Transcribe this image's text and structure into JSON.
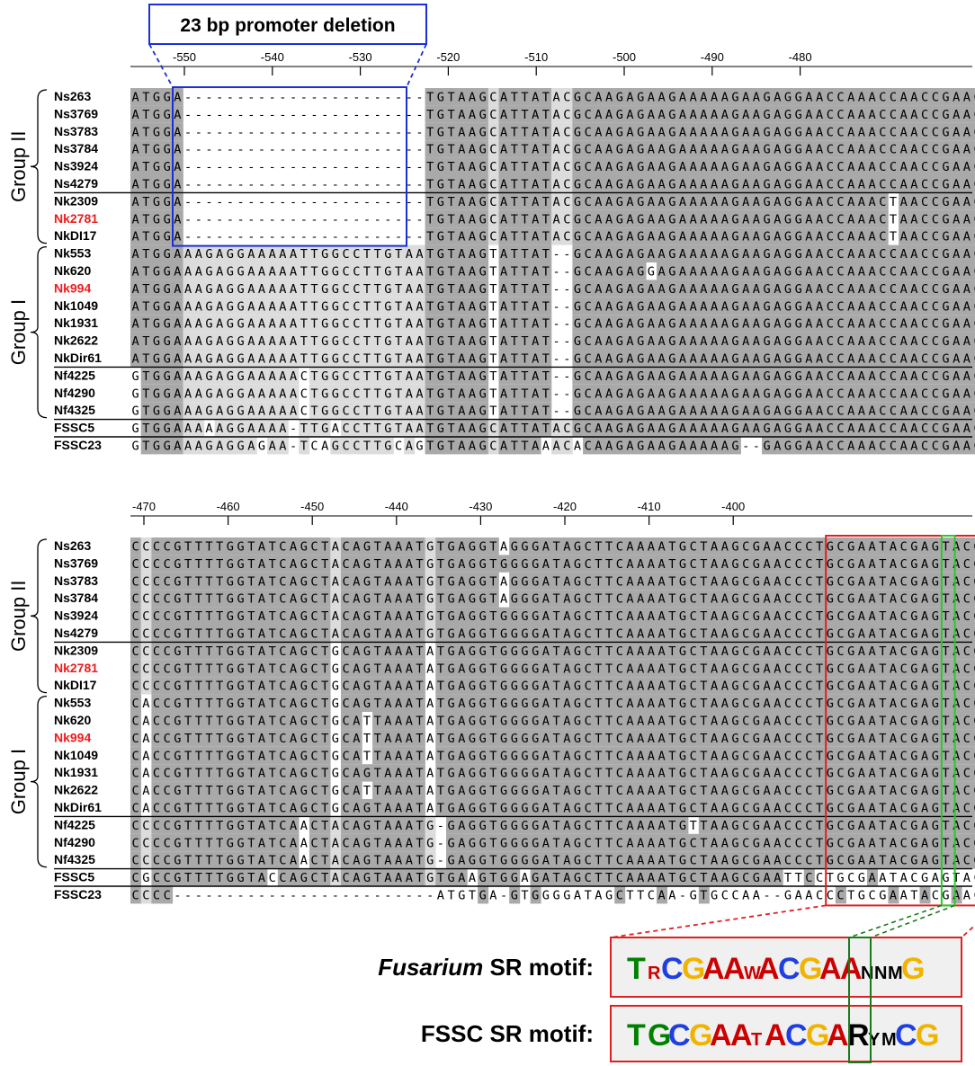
{
  "deletion_label": "23 bp promoter deletion",
  "axis_top": [
    "-550",
    "-540",
    "-530",
    "-520",
    "-510",
    "-500",
    "-490",
    "-480"
  ],
  "axis_bottom": [
    "-470",
    "-460",
    "-450",
    "-440",
    "-430",
    "-420",
    "-410",
    "-400"
  ],
  "groups": {
    "group_ii": "Group II",
    "group_i": "Group I"
  },
  "panel1": {
    "rows": [
      {
        "label": "Ns263",
        "highlight": false,
        "seq": "ATGGA-----------------------TGTAAGCATTATACGCAAGAGAAGAAAAAGAAGAGGAACCAAACCAACCGAACGT"
      },
      {
        "label": "Ns3769",
        "highlight": false,
        "seq": "ATGGA-----------------------TGTAAGCATTATACGCAAGAGAAGAAAAAGAAGAGGAACCAAACCAACCGAACGT"
      },
      {
        "label": "Ns3783",
        "highlight": false,
        "seq": "ATGGA-----------------------TGTAAGCATTATACGCAAGAGAAGAAAAAGAAGAGGAACCAAACCAACCGAACGT"
      },
      {
        "label": "Ns3784",
        "highlight": false,
        "seq": "ATGGA-----------------------TGTAAGCATTATACGCAAGAGAAGAAAAAGAAGAGGAACCAAACCAACCGAACGT"
      },
      {
        "label": "Ns3924",
        "highlight": false,
        "seq": "ATGGA-----------------------TGTAAGCATTATACGCAAGAGAAGAAAAAGAAGAGGAACCAAACCAACCGAACGT"
      },
      {
        "label": "Ns4279",
        "highlight": false,
        "seq": "ATGGA-----------------------TGTAAGCATTATACGCAAGAGAAGAAAAAGAAGAGGAACCAAACCAACCGAACGT"
      },
      {
        "label": "Nk2309",
        "highlight": false,
        "seq": "ATGGA-----------------------TGTAAGCATTATACGCAAGAGAAGAAAAAGAAGAGGAACCAAACTAACCGAACGT"
      },
      {
        "label": "Nk2781",
        "highlight": true,
        "seq": "ATGGA-----------------------TGTAAGCATTATACGCAAGAGAAGAAAAAGAAGAGGAACCAAACTAACCGAACGT"
      },
      {
        "label": "NkDI17",
        "highlight": false,
        "seq": "ATGGA-----------------------TGTAAGCATTATACGCAAGAGAAGAAAAAGAAGAGGAACCAAACTAACCGAACGT"
      },
      {
        "label": "Nk553",
        "highlight": false,
        "seq": "ATGGAAAGAGGAAAAATTGGCCTTGTAATGTAAGTATTAT--GCAAGAGAAGAAAAAGAAGAGGAACCAAACCAACCGAACGT"
      },
      {
        "label": "Nk620",
        "highlight": false,
        "seq": "ATGGAAAGAGGAAAAATTGGCCTTGTAATGTAAGTATTAT--GCAAGAGGAGAAAAAGAAGAGGAACCAAACCAACCGAACGT"
      },
      {
        "label": "Nk994",
        "highlight": true,
        "seq": "ATGGAAAGAGGAAAAATTGGCCTTGTAATGTAAGTATTAT--GCAAGAGAAGAAAAAGAAGAGGAACCAAACCAACCGAACGT"
      },
      {
        "label": "Nk1049",
        "highlight": false,
        "seq": "ATGGAAAGAGGAAAAATTGGCCTTGTAATGTAAGTATTAT--GCAAGAGAAGAAAAAGAAGAGGAACCAAACCAACCGAACGT"
      },
      {
        "label": "Nk1931",
        "highlight": false,
        "seq": "ATGGAAAGAGGAAAAATTGGCCTTGTAATGTAAGTATTAT--GCAAGAGAAGAAAAAGAAGAGGAACCAAACCAACCGAACGT"
      },
      {
        "label": "Nk2622",
        "highlight": false,
        "seq": "ATGGAAAGAGGAAAAATTGGCCTTGTAATGTAAGTATTAT--GCAAGAGAAGAAAAAGAAGAGGAACCAAACCAACCGAACGT"
      },
      {
        "label": "NkDir61",
        "highlight": false,
        "seq": "ATGGAAAGAGGAAAAATTGGCCTTGTAATGTAAGTATTAT--GCAAGAGAAGAAAAAGAAGAGGAACCAAACCAACCGAACGT"
      },
      {
        "label": "Nf4225",
        "highlight": false,
        "seq": "GTGGAAAGAGGAAAAACTGGCCTTGTAATGTAAGTATTAT--GCAAGAGAAGAAAAAGAAGAGGAACCAAACCAACCGAACGT"
      },
      {
        "label": "Nf4290",
        "highlight": false,
        "seq": "GTGGAAAGAGGAAAAACTGGCCTTGTAATGTAAGTATTAT--GCAAGAGAAGAAAAAGAAGAGGAACCAAACCAACCGAACGT"
      },
      {
        "label": "Nf4325",
        "highlight": false,
        "seq": "GTGGAAAGAGGAAAAACTGGCCTTGTAATGTAAGTATTAT--GCAAGAGAAGAAAAAGAAGAGGAACCAAACCAACCGAACGT"
      },
      {
        "label": "FSSC5",
        "highlight": false,
        "seq": "GTGGAAAAAGGAAAA-TTGACCTTGTAATGTAAGCATTATACGCAAGAGAAGAAAAAGAAGAGGAACCAAACCAACCGAACGT"
      },
      {
        "label": "FSSC23",
        "highlight": false,
        "seq": "GTGGAAAGAGGAGAA-TCAGCCTTGCAGTGTAAGCATTAAACACAAGAGAAGAAAAAG--GAGGAACCAAACCAACCGAACGT"
      }
    ]
  },
  "panel2": {
    "rows": [
      {
        "label": "Ns263",
        "highlight": false,
        "seq": "CCCCGTTTTGGTATCAGCTACAGTAAATGTGAGGTAGGGATAGCTTCAAAATGCTAAGCGAACCCTGCGAATACGAGTACGA"
      },
      {
        "label": "Ns3769",
        "highlight": false,
        "seq": "CCCCGTTTTGGTATCAGCTACAGTAAATGTGAGGTGGGGATAGCTTCAAAATGCTAAGCGAACCCTGCGAATACGAGTACGA"
      },
      {
        "label": "Ns3783",
        "highlight": false,
        "seq": "CCCCGTTTTGGTATCAGCTACAGTAAATGTGAGGTAGGGATAGCTTCAAAATGCTAAGCGAACCCTGCGAATACGAGTACGA"
      },
      {
        "label": "Ns3784",
        "highlight": false,
        "seq": "CCCCGTTTTGGTATCAGCTACAGTAAATGTGAGGTAGGGATAGCTTCAAAATGCTAAGCGAACCCTGCGAATACGAGTACGA"
      },
      {
        "label": "Ns3924",
        "highlight": false,
        "seq": "CCCCGTTTTGGTATCAGCTACAGTAAATGTGAGGTGGGGATAGCTTCAAAATGCTAAGCGAACCCTGCGAATACGAGTACGA"
      },
      {
        "label": "Ns4279",
        "highlight": false,
        "seq": "CCCCGTTTTGGTATCAGCTACAGTAAATGTGAGGTGGGGATAGCTTCAAAATGCTAAGCGAACCCTGCGAATACGAGTACGA"
      },
      {
        "label": "Nk2309",
        "highlight": false,
        "seq": "CCCCGTTTTGGTATCAGCTGCAGTAAATATGAGGTGGGGATAGCTTCAAAATGCTAAGCGAACCCTGCGAATACGAGTACGA"
      },
      {
        "label": "Nk2781",
        "highlight": true,
        "seq": "CCCCGTTTTGGTATCAGCTGCAGTAAATATGAGGTGGGGATAGCTTCAAAATGCTAAGCGAACCCTGCGAATACGAGTACGA"
      },
      {
        "label": "NkDI17",
        "highlight": false,
        "seq": "CCCCGTTTTGGTATCAGCTGCAGTAAATATGAGGTGGGGATAGCTTCAAAATGCTAAGCGAACCCTGCGAATACGAGTACGA"
      },
      {
        "label": "Nk553",
        "highlight": false,
        "seq": "CACCGTTTTGGTATCAGCTGCAGTAAATATGAGGTGGGGATAGCTTCAAAATGCTAAGCGAACCCTGCGAATACGAGTACGA"
      },
      {
        "label": "Nk620",
        "highlight": false,
        "seq": "CACCGTTTTGGTATCAGCTGCATTAAATATGAGGTGGGGATAGCTTCAAAATGCTAAGCGAACCCTGCGAATACGAGTACGA"
      },
      {
        "label": "Nk994",
        "highlight": true,
        "seq": "CACCGTTTTGGTATCAGCTGCATTAAATATGAGGTGGGGATAGCTTCAAAATGCTAAGCGAACCCTGCGAATACGAGTACGA"
      },
      {
        "label": "Nk1049",
        "highlight": false,
        "seq": "CACCGTTTTGGTATCAGCTGCATTAAATATGAGGTGGGGATAGCTTCAAAATGCTAAGCGAACCCTGCGAATACGAGTACGA"
      },
      {
        "label": "Nk1931",
        "highlight": false,
        "seq": "CACCGTTTTGGTATCAGCTGCAGTAAATATGAGGTGGGGATAGCTTCAAAATGCTAAGCGAACCCTGCGAATACGAGTACGA"
      },
      {
        "label": "Nk2622",
        "highlight": false,
        "seq": "CACCGTTTTGGTATCAGCTGCATTAAATATGAGGTGGGGATAGCTTCAAAATGCTAAGCGAACCCTGCGAATACGAGTACGA"
      },
      {
        "label": "NkDir61",
        "highlight": false,
        "seq": "CACCGTTTTGGTATCAGCTGCAGTAAATATGAGGTGGGGATAGCTTCAAAATGCTAAGCGAACCCTGCGAATACGAGTACGA"
      },
      {
        "label": "Nf4225",
        "highlight": false,
        "seq": "CCCCGTTTTGGTATCAACTACAGTAAATG-GAGGTGGGGATAGCTTCAAAATGTTAAGCGAACCCTGCGAATACGAGTACGA"
      },
      {
        "label": "Nf4290",
        "highlight": false,
        "seq": "CCCCGTTTTGGTATCAACTACAGTAAATG-GAGGTGGGGATAGCTTCAAAATGCTAAGCGAACCCTGCGAATACGAGTACGA"
      },
      {
        "label": "Nf4325",
        "highlight": false,
        "seq": "CCCCGTTTTGGTATCAACTACAGTAAATG-GAGGTGGGGATAGCTTCAAAATGCTAAGCGAACCCTGCGAATACGAGTACGA"
      },
      {
        "label": "FSSC5",
        "highlight": false,
        "seq": "CGCCGTTTTGGTACCAGCTACAGTAAATGTGAAGTGGAGATAGCTTCAAAATGCTAAGCGAATTCCTGCGAATACGAGTACGA"
      },
      {
        "label": "FSSC23",
        "highlight": false,
        "seq": "CCCC-------------------------ATGTGA-GTGGGGATAGCTTCAA-GTGCCAA--GAACCCTGCGAATACGAACCCGT"
      }
    ]
  },
  "motifs": [
    {
      "title_italic": "Fusarium",
      "title_rest": " SR motif:",
      "letters": [
        {
          "c": "T",
          "s": "L",
          "col": "#008000"
        },
        {
          "c": "R",
          "s": "S",
          "col": "#cc0000"
        },
        {
          "c": "C",
          "s": "L",
          "col": "#1f3fe0"
        },
        {
          "c": "G",
          "s": "L",
          "col": "#f0b400"
        },
        {
          "c": "A",
          "s": "L",
          "col": "#cc0000"
        },
        {
          "c": "A",
          "s": "L",
          "col": "#cc0000"
        },
        {
          "c": "W",
          "s": "S",
          "col": "#cc0000"
        },
        {
          "c": "A",
          "s": "L",
          "col": "#cc0000"
        },
        {
          "c": "C",
          "s": "L",
          "col": "#1f3fe0"
        },
        {
          "c": "G",
          "s": "L",
          "col": "#f0b400"
        },
        {
          "c": "A",
          "s": "L",
          "col": "#cc0000"
        },
        {
          "c": "A",
          "s": "L",
          "col": "#cc0000"
        },
        {
          "c": "N",
          "s": "S",
          "col": "#000000"
        },
        {
          "c": "N",
          "s": "S",
          "col": "#000000"
        },
        {
          "c": "M",
          "s": "S",
          "col": "#000000"
        },
        {
          "c": "G",
          "s": "L",
          "col": "#f0b400"
        }
      ]
    },
    {
      "title_italic": "",
      "title_rest": "FSSC SR motif:",
      "letters": [
        {
          "c": "T",
          "s": "L",
          "col": "#008000"
        },
        {
          "c": "G",
          "s": "L",
          "col": "#008000"
        },
        {
          "c": "C",
          "s": "L",
          "col": "#1f3fe0"
        },
        {
          "c": "G",
          "s": "L",
          "col": "#f0b400"
        },
        {
          "c": "A",
          "s": "L",
          "col": "#cc0000"
        },
        {
          "c": "A",
          "s": "L",
          "col": "#cc0000"
        },
        {
          "c": "T",
          "s": "S",
          "col": "#cc0000"
        },
        {
          "c": "A",
          "s": "L",
          "col": "#cc0000"
        },
        {
          "c": "C",
          "s": "L",
          "col": "#1f3fe0"
        },
        {
          "c": "G",
          "s": "L",
          "col": "#f0b400"
        },
        {
          "c": "A",
          "s": "L",
          "col": "#cc0000"
        },
        {
          "c": "R",
          "s": "L",
          "col": "#000000"
        },
        {
          "c": "Y",
          "s": "S",
          "col": "#000000"
        },
        {
          "c": "M",
          "s": "S",
          "col": "#000000"
        },
        {
          "c": "C",
          "s": "L",
          "col": "#1f3fe0"
        },
        {
          "c": "G",
          "s": "L",
          "col": "#f0b400"
        }
      ]
    }
  ],
  "colors": {
    "conserved": "#a9a9a9",
    "partial": "#dcdcdc",
    "deletion_box": "#1a2fd6",
    "sr_box": "#e02020",
    "green_box": "#2bc82b",
    "red_label": "#ee1c1c"
  }
}
